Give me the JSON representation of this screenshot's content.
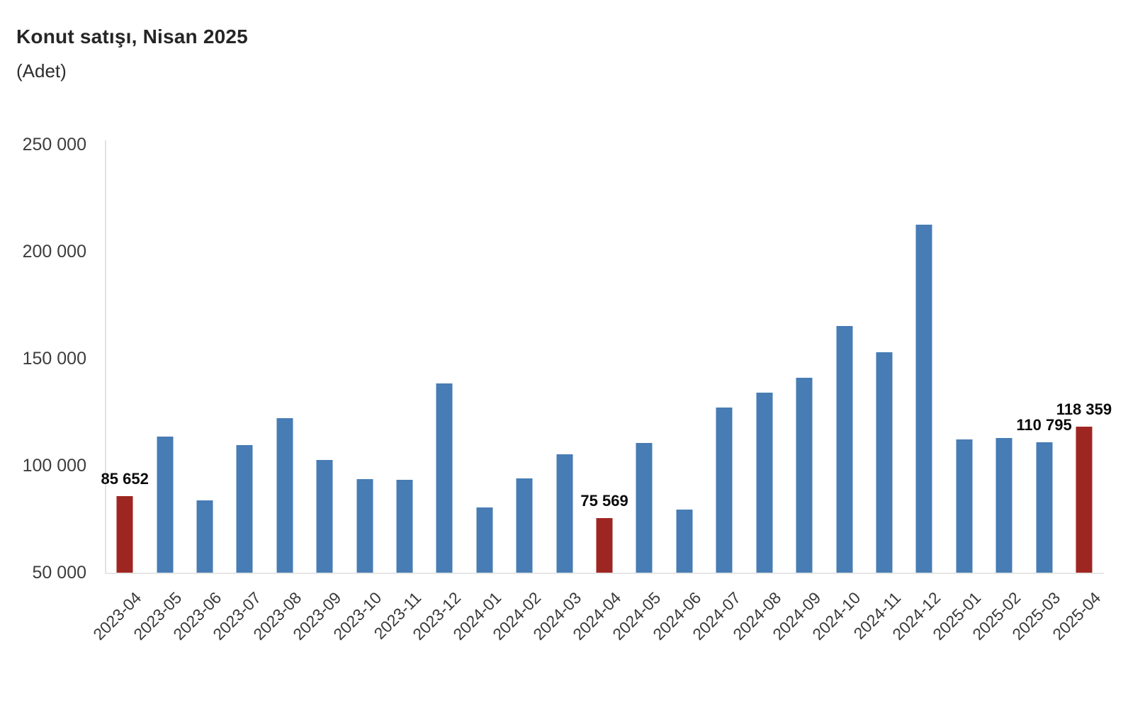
{
  "header": {
    "title": "Konut satışı, Nisan 2025",
    "subtitle": "(Adet)"
  },
  "chart_data": {
    "type": "bar",
    "title": "Konut satışı, Nisan 2025",
    "unit_label": "(Adet)",
    "xlabel": "",
    "ylabel": "",
    "categories": [
      "2023-04",
      "2023-05",
      "2023-06",
      "2023-07",
      "2023-08",
      "2023-09",
      "2023-10",
      "2023-11",
      "2023-12",
      "2024-01",
      "2024-02",
      "2024-03",
      "2024-04",
      "2024-05",
      "2024-06",
      "2024-07",
      "2024-08",
      "2024-09",
      "2024-10",
      "2024-11",
      "2024-12",
      "2025-01",
      "2025-02",
      "2025-03",
      "2025-04"
    ],
    "values": [
      85652,
      113656,
      83636,
      109548,
      122091,
      102656,
      93761,
      93514,
      138577,
      80308,
      93902,
      105394,
      75569,
      110588,
      79313,
      127088,
      134155,
      140919,
      165138,
      153014,
      212637,
      112173,
      112818,
      110795,
      118359
    ],
    "highlighted_categories": [
      "2023-04",
      "2024-04",
      "2025-04"
    ],
    "data_labels": {
      "2023-04": "85 652",
      "2024-04": "75 569",
      "2025-03": "110 795",
      "2025-04": "118 359"
    },
    "ylim": [
      50000,
      250000
    ],
    "yticks": [
      250000,
      200000,
      150000,
      100000,
      50000
    ],
    "ytick_labels": [
      "250 000",
      "200 000",
      "150 000",
      "100 000",
      "50 000"
    ],
    "grid": false,
    "legend": false,
    "colors": {
      "bar": "#477cb4",
      "highlight": "#9e2622",
      "axis_line": "#e4e4e4",
      "tick_text": "#3d3d3d",
      "data_label_text": "#0a0a0a"
    }
  }
}
